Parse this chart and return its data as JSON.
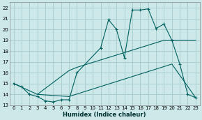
{
  "xlabel": "Humidex (Indice chaleur)",
  "bg_color": "#cce8e8",
  "grid_color": "#aacfcf",
  "line_color": "#006060",
  "xlim": [
    -0.5,
    23.5
  ],
  "ylim": [
    13,
    22.5
  ],
  "yticks": [
    13,
    14,
    15,
    16,
    17,
    18,
    19,
    20,
    21,
    22
  ],
  "xticks": [
    0,
    1,
    2,
    3,
    4,
    5,
    6,
    7,
    8,
    9,
    10,
    11,
    12,
    13,
    14,
    15,
    16,
    17,
    18,
    19,
    20,
    21,
    22,
    23
  ],
  "line1_x": [
    0,
    1,
    2,
    3,
    4,
    5,
    6,
    7,
    8,
    11,
    12,
    13,
    14,
    15,
    16,
    17,
    18,
    19,
    20,
    21,
    22,
    23
  ],
  "line1_y": [
    15.0,
    14.7,
    14.0,
    13.8,
    13.4,
    13.3,
    13.5,
    13.5,
    16.0,
    18.3,
    20.9,
    20.0,
    17.4,
    21.8,
    21.8,
    21.9,
    20.1,
    20.5,
    19.0,
    16.8,
    14.0,
    13.7
  ],
  "line2_x": [
    0,
    3,
    7,
    8,
    19,
    23
  ],
  "line2_y": [
    15.0,
    14.0,
    16.2,
    16.5,
    19.0,
    19.0
  ],
  "line3_x": [
    3,
    7,
    20,
    23
  ],
  "line3_y": [
    14.0,
    13.8,
    16.8,
    13.7
  ]
}
